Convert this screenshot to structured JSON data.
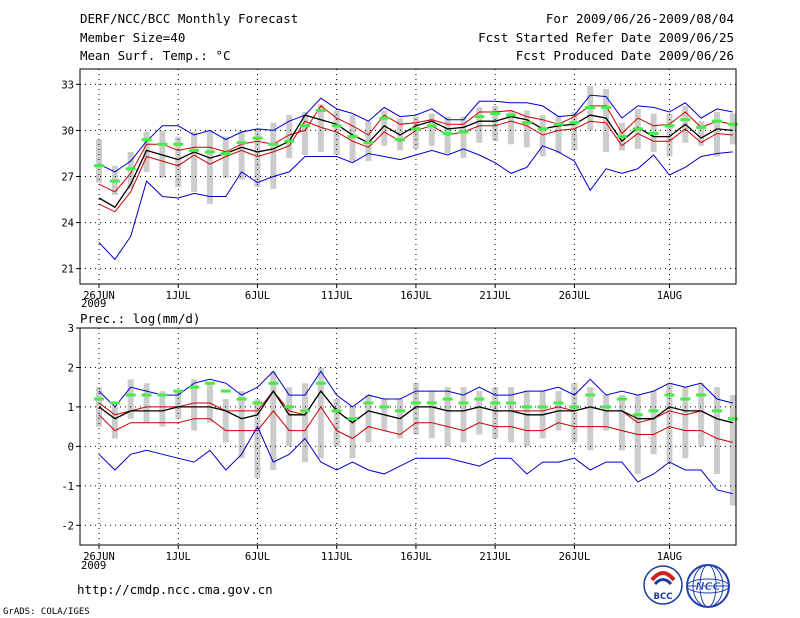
{
  "header": {
    "title": "DERF/NCC/BCC Monthly Forecast",
    "member_size": "Member Size=40",
    "period": "For 2009/06/26-2009/08/04",
    "fcst_started": "Fcst Started Refer Date 2009/06/25",
    "fcst_produced": "Fcst Produced Date 2009/06/26"
  },
  "footer": {
    "url": "http://cmdp.ncc.cma.gov.cn",
    "grads": "GrADS: COLA/IGES",
    "logo_bcc_text": "BCC",
    "logo_ncc_text": "NCC"
  },
  "colors": {
    "ensemble_max_min": "#0000cc",
    "plus_minus_sd": "#cc0000",
    "ensemble_mean": "#000000",
    "observation_climate": "#44ee44",
    "range_bar": "#cccccc"
  },
  "chart_data": [
    {
      "type": "line",
      "title": "Mean Surf. Temp.: °C",
      "xlabel": "",
      "ylabel": "",
      "x_ticks": [
        "26JUN",
        "1JUL",
        "6JUL",
        "11JUL",
        "16JUL",
        "21JUL",
        "26JUL",
        "1AUG"
      ],
      "x_ticks_day_index": [
        0,
        5,
        10,
        15,
        20,
        25,
        30,
        36
      ],
      "x_year_label": "2009",
      "x_range": [
        -1.2,
        40.2
      ],
      "ylim": [
        20,
        34
      ],
      "y_ticks": [
        21,
        24,
        27,
        30,
        33
      ],
      "grid": true,
      "series": [
        {
          "name": "ensemble max",
          "color": "#0000cc",
          "values": [
            27.8,
            27.3,
            28.0,
            29.3,
            30.3,
            30.3,
            29.7,
            30.0,
            29.4,
            29.9,
            30.1,
            30.0,
            30.6,
            31.0,
            32.1,
            31.4,
            31.1,
            30.6,
            31.5,
            30.9,
            31.0,
            31.4,
            30.7,
            30.7,
            31.9,
            31.9,
            31.8,
            31.8,
            31.6,
            30.9,
            31.0,
            32.3,
            32.2,
            30.8,
            31.6,
            31.5,
            31.2,
            31.8,
            30.8,
            31.4,
            31.2
          ]
        },
        {
          "name": "mean + sd",
          "color": "#cc0000",
          "values": [
            26.5,
            26.0,
            27.2,
            29.1,
            29.1,
            28.7,
            28.9,
            28.9,
            28.6,
            29.1,
            29.3,
            29.1,
            29.7,
            30.0,
            31.6,
            30.8,
            30.3,
            29.7,
            31.0,
            30.4,
            30.5,
            30.7,
            30.4,
            30.4,
            31.2,
            31.2,
            31.3,
            30.9,
            30.7,
            30.4,
            30.9,
            31.6,
            31.6,
            29.8,
            30.8,
            30.3,
            30.4,
            31.2,
            30.2,
            30.6,
            30.4
          ]
        },
        {
          "name": "ensemble mean",
          "color": "#000000",
          "values": [
            25.6,
            25.0,
            26.5,
            28.7,
            28.4,
            28.1,
            28.6,
            28.2,
            28.5,
            28.9,
            28.6,
            28.8,
            29.3,
            31.0,
            30.7,
            30.4,
            29.7,
            29.2,
            30.3,
            29.7,
            30.3,
            30.6,
            30.1,
            30.2,
            30.6,
            30.6,
            30.9,
            30.7,
            30.1,
            30.3,
            30.4,
            31.0,
            30.8,
            29.3,
            30.2,
            29.6,
            29.6,
            30.4,
            29.5,
            30.1,
            30.0
          ]
        },
        {
          "name": "mean - sd",
          "color": "#cc0000",
          "values": [
            25.2,
            24.7,
            26.0,
            28.3,
            28.0,
            27.7,
            28.4,
            27.8,
            28.3,
            28.7,
            28.3,
            28.6,
            29.0,
            30.6,
            30.2,
            29.9,
            29.3,
            28.9,
            29.9,
            29.3,
            30.0,
            30.3,
            29.7,
            29.9,
            30.3,
            30.3,
            30.6,
            30.3,
            29.7,
            30.0,
            30.1,
            30.6,
            30.5,
            29.0,
            29.8,
            29.3,
            29.3,
            30.1,
            29.2,
            29.8,
            29.7
          ]
        },
        {
          "name": "ensemble min",
          "color": "#0000cc",
          "values": [
            22.7,
            21.6,
            23.1,
            26.7,
            25.7,
            25.6,
            25.9,
            25.7,
            25.7,
            27.3,
            26.6,
            27.0,
            27.3,
            28.3,
            28.3,
            28.3,
            27.9,
            28.5,
            28.3,
            28.1,
            28.4,
            28.7,
            28.4,
            28.8,
            28.4,
            27.9,
            27.2,
            27.6,
            29.0,
            28.6,
            28.0,
            26.1,
            27.5,
            27.2,
            27.5,
            28.4,
            27.1,
            27.6,
            28.3,
            28.5,
            28.6
          ]
        }
      ],
      "markers": {
        "name": "observation / climate",
        "color": "#44ee44",
        "values": [
          27.7,
          26.7,
          27.5,
          29.4,
          29.1,
          29.1,
          28.7,
          28.6,
          28.5,
          29.2,
          29.5,
          29.1,
          29.3,
          30.3,
          31.3,
          30.3,
          29.6,
          29.2,
          30.8,
          29.4,
          30.1,
          30.3,
          29.8,
          29.9,
          30.9,
          31.1,
          31.0,
          30.5,
          30.1,
          30.4,
          30.5,
          31.5,
          31.5,
          29.6,
          30.1,
          29.8,
          30.3,
          30.7,
          30.2,
          30.6,
          30.4
        ]
      },
      "range_bars": {
        "name": "range",
        "color": "#cccccc",
        "low": [
          26.6,
          25.8,
          26.2,
          27.3,
          26.9,
          26.3,
          26.0,
          25.2,
          26.9,
          26.8,
          26.3,
          26.2,
          28.2,
          28.4,
          28.6,
          28.4,
          28.0,
          28.0,
          29.0,
          28.7,
          28.8,
          29.0,
          28.5,
          28.2,
          29.2,
          29.3,
          29.1,
          28.9,
          28.3,
          28.5,
          28.7,
          30.0,
          28.6,
          28.7,
          28.8,
          28.6,
          28.3,
          29.2,
          29.0,
          28.3,
          29.1
        ],
        "high": [
          29.4,
          27.7,
          28.6,
          29.9,
          30.0,
          29.6,
          29.9,
          30.0,
          29.6,
          30.0,
          30.1,
          30.5,
          31.0,
          31.2,
          31.7,
          31.3,
          31.0,
          30.6,
          31.3,
          30.8,
          30.9,
          31.1,
          30.9,
          30.9,
          31.5,
          31.6,
          31.3,
          31.3,
          31.0,
          30.9,
          31.2,
          32.9,
          32.7,
          30.5,
          31.4,
          31.1,
          31.1,
          31.6,
          30.6,
          31.2,
          31.1
        ]
      }
    },
    {
      "type": "line",
      "title": "Prec.: log(mm/d)",
      "xlabel": "",
      "ylabel": "",
      "x_ticks": [
        "26JUN",
        "1JUL",
        "6JUL",
        "11JUL",
        "16JUL",
        "21JUL",
        "26JUL",
        "1AUG"
      ],
      "x_ticks_day_index": [
        0,
        5,
        10,
        15,
        20,
        25,
        30,
        36
      ],
      "x_year_label": "2009",
      "x_range": [
        -1.2,
        40.2
      ],
      "ylim": [
        -2.5,
        3
      ],
      "y_ticks": [
        -2,
        -1,
        0,
        1,
        2,
        3
      ],
      "grid": true,
      "series": [
        {
          "name": "ensemble max",
          "color": "#0000cc",
          "values": [
            1.4,
            1.0,
            1.5,
            1.4,
            1.3,
            1.3,
            1.6,
            1.7,
            1.6,
            1.3,
            1.5,
            1.9,
            1.3,
            1.3,
            1.9,
            1.3,
            1.0,
            1.3,
            1.2,
            1.2,
            1.4,
            1.4,
            1.4,
            1.3,
            1.5,
            1.3,
            1.3,
            1.4,
            1.4,
            1.5,
            1.3,
            1.7,
            1.3,
            1.4,
            1.3,
            1.4,
            1.6,
            1.5,
            1.6,
            1.2,
            1.1
          ]
        },
        {
          "name": "mean + sd",
          "color": "#cc0000",
          "values": [
            1.1,
            0.8,
            0.9,
            1.0,
            1.0,
            1.0,
            1.1,
            1.1,
            0.9,
            0.9,
            0.9,
            1.4,
            0.9,
            0.8,
            1.4,
            0.9,
            0.6,
            0.9,
            0.8,
            0.7,
            1.0,
            1.0,
            0.9,
            0.9,
            1.0,
            0.9,
            0.9,
            0.9,
            0.9,
            1.0,
            0.9,
            1.0,
            0.9,
            0.9,
            0.6,
            0.7,
            0.9,
            0.8,
            0.9,
            0.7,
            0.6
          ]
        },
        {
          "name": "ensemble mean",
          "color": "#000000",
          "values": [
            1.0,
            0.7,
            0.9,
            0.9,
            0.9,
            1.0,
            1.0,
            1.0,
            0.9,
            0.7,
            0.8,
            1.4,
            0.8,
            0.8,
            1.4,
            0.9,
            0.6,
            0.9,
            0.8,
            0.7,
            1.0,
            1.0,
            0.9,
            0.9,
            1.0,
            0.9,
            0.9,
            0.8,
            0.8,
            0.9,
            0.9,
            1.0,
            0.9,
            0.9,
            0.7,
            0.7,
            1.0,
            0.9,
            0.9,
            0.7,
            0.6
          ]
        },
        {
          "name": "mean - sd",
          "color": "#cc0000",
          "values": [
            0.8,
            0.4,
            0.6,
            0.6,
            0.6,
            0.6,
            0.7,
            0.7,
            0.4,
            0.4,
            0.4,
            0.9,
            0.4,
            0.4,
            1.0,
            0.4,
            0.2,
            0.5,
            0.4,
            0.3,
            0.6,
            0.6,
            0.5,
            0.4,
            0.6,
            0.5,
            0.5,
            0.4,
            0.4,
            0.6,
            0.5,
            0.5,
            0.5,
            0.4,
            0.3,
            0.3,
            0.5,
            0.4,
            0.4,
            0.2,
            0.1
          ]
        },
        {
          "name": "ensemble min",
          "color": "#0000cc",
          "values": [
            -0.2,
            -0.6,
            -0.2,
            -0.1,
            -0.2,
            -0.3,
            -0.4,
            -0.1,
            -0.6,
            -0.2,
            0.5,
            -0.4,
            -0.2,
            0.2,
            -0.4,
            -0.6,
            -0.4,
            -0.6,
            -0.7,
            -0.5,
            -0.3,
            -0.3,
            -0.3,
            -0.4,
            -0.5,
            -0.3,
            -0.3,
            -0.7,
            -0.4,
            -0.4,
            -0.3,
            -0.6,
            -0.4,
            -0.4,
            -0.9,
            -0.7,
            -0.4,
            -0.6,
            -0.6,
            -1.1,
            -1.2
          ]
        },
        {
          "name": "climate",
          "color": "#44ee44",
          "values": [
            1.2,
            1.1,
            1.3,
            1.3,
            1.3,
            1.4,
            1.5,
            1.6,
            1.4,
            1.2,
            1.1,
            1.6,
            1.0,
            0.9,
            1.6,
            0.9,
            0.7,
            1.1,
            1.0,
            0.9,
            1.1,
            1.1,
            1.2,
            1.1,
            1.2,
            1.1,
            1.1,
            1.0,
            1.0,
            1.1,
            1.0,
            1.3,
            1.0,
            1.2,
            0.8,
            0.9,
            1.3,
            1.2,
            1.3,
            0.9,
            0.7
          ]
        }
      ],
      "markers": {
        "name": "climate",
        "color": "#44ee44",
        "values": [
          1.2,
          1.1,
          1.3,
          1.3,
          1.3,
          1.4,
          1.5,
          1.6,
          1.4,
          1.2,
          1.1,
          1.6,
          1.0,
          0.9,
          1.6,
          0.9,
          0.7,
          1.1,
          1.0,
          0.9,
          1.1,
          1.1,
          1.2,
          1.1,
          1.2,
          1.1,
          1.1,
          1.0,
          1.0,
          1.1,
          1.0,
          1.3,
          1.0,
          1.2,
          0.8,
          0.9,
          1.3,
          1.2,
          1.3,
          0.9,
          0.7
        ]
      },
      "range_bars": {
        "name": "range",
        "color": "#cccccc",
        "low": [
          0.5,
          0.2,
          0.7,
          0.6,
          0.5,
          0.7,
          0.4,
          0.6,
          0.1,
          -0.3,
          -0.8,
          -0.6,
          0.0,
          -0.4,
          -0.3,
          0.0,
          -0.3,
          0.1,
          0.4,
          0.2,
          0.3,
          0.2,
          0.0,
          0.1,
          0.3,
          0.2,
          0.1,
          0.0,
          0.2,
          0.4,
          0.1,
          -0.1,
          0.4,
          -0.1,
          -0.7,
          -0.2,
          -0.4,
          -0.3,
          0.0,
          -0.7,
          -1.5
        ],
        "high": [
          1.5,
          1.0,
          1.7,
          1.6,
          1.4,
          1.4,
          1.7,
          1.6,
          1.2,
          1.4,
          1.2,
          1.9,
          1.5,
          1.6,
          2.0,
          1.2,
          1.0,
          1.3,
          1.2,
          1.2,
          1.6,
          1.4,
          1.5,
          1.5,
          1.4,
          1.5,
          1.5,
          1.4,
          1.4,
          1.4,
          1.6,
          1.5,
          1.3,
          1.3,
          1.3,
          1.4,
          1.6,
          1.5,
          1.6,
          1.5,
          1.3
        ]
      }
    }
  ]
}
